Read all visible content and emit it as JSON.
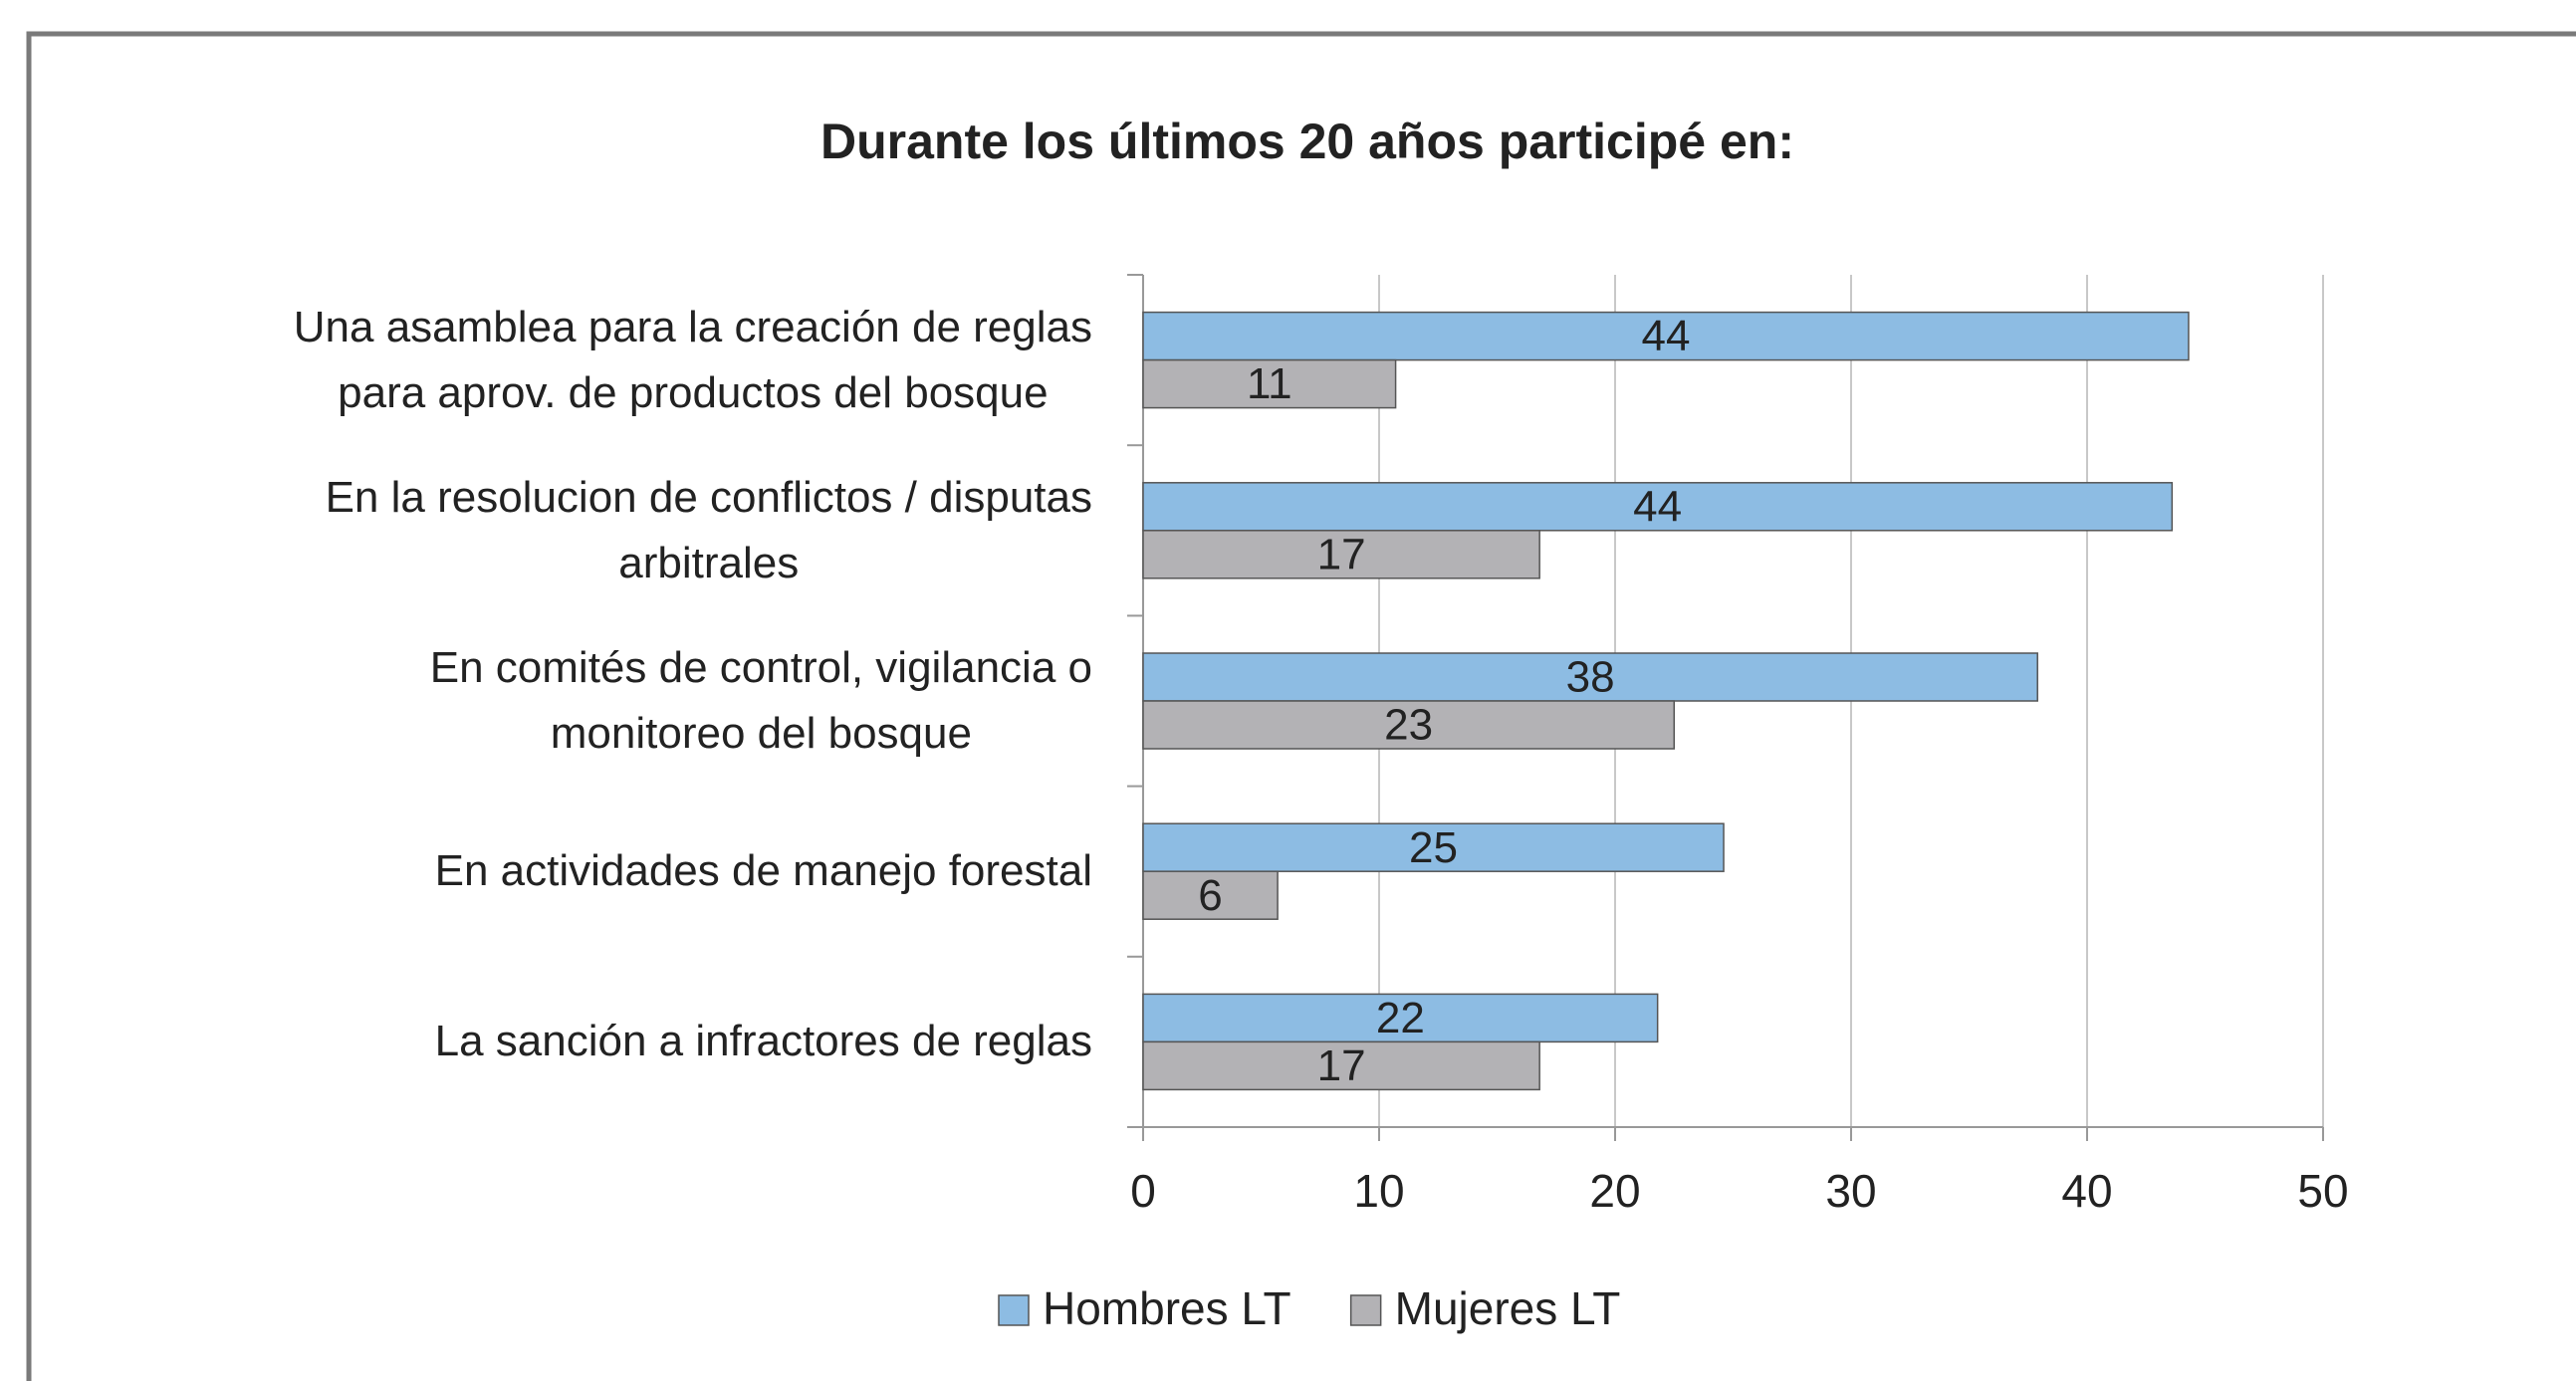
{
  "chart_data": {
    "type": "bar",
    "orientation": "horizontal",
    "title": "Durante los últimos 20 años participé en:",
    "categories": [
      "Una asamblea para la creación de reglas\npara aprov. de productos del bosque",
      "En la resolucion de conflictos / disputas\narbitrales",
      "En comités de control, vigilancia o\nmonitoreo del bosque",
      "En actividades de manejo forestal",
      "La sanción a infractores de reglas"
    ],
    "series": [
      {
        "name": "Hombres LT",
        "color": "#8dbce3",
        "values": [
          44.3,
          43.6,
          37.9,
          24.6,
          21.8
        ],
        "value_labels": [
          "44",
          "44",
          "38",
          "25",
          "22"
        ]
      },
      {
        "name": "Mujeres LT",
        "color": "#b3b2b5",
        "values": [
          10.7,
          16.8,
          22.5,
          5.7,
          16.8
        ],
        "value_labels": [
          "11",
          "17",
          "23",
          "6",
          "17"
        ]
      }
    ],
    "xlim": [
      0,
      50
    ],
    "xticks": [
      0,
      10,
      20,
      30,
      40,
      50
    ],
    "grid": true,
    "legend": "bottom"
  }
}
